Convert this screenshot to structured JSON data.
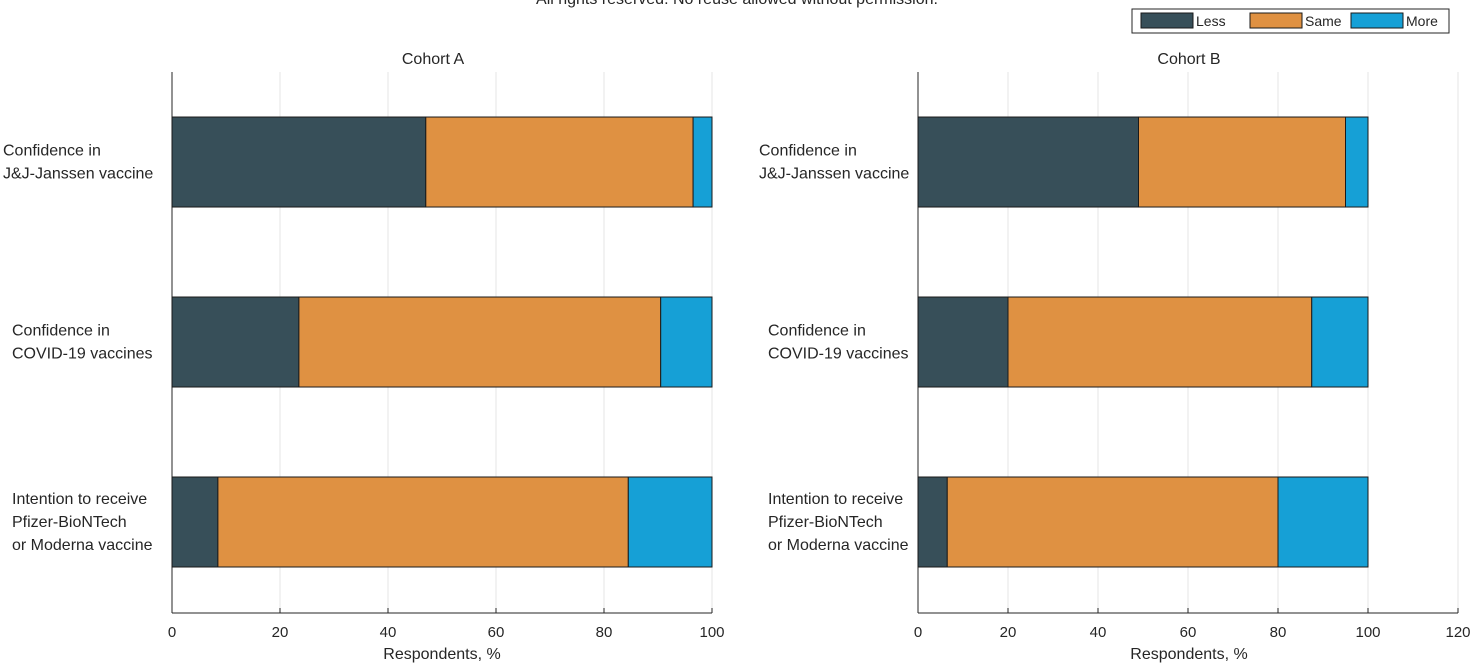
{
  "notice": "All rights reserved. No reuse allowed without permission.",
  "legend": {
    "placement": "top-right",
    "items": [
      {
        "label": "Less",
        "color": "#374f59"
      },
      {
        "label": "Same",
        "color": "#df9142"
      },
      {
        "label": "More",
        "color": "#16a0d6"
      }
    ]
  },
  "chart_data": [
    {
      "type": "bar",
      "orientation": "horizontal",
      "stacked": true,
      "title": "Cohort A",
      "xlabel": "Respondents, %",
      "ylabel": "",
      "xlim": [
        0,
        100
      ],
      "xticks": [
        0,
        20,
        40,
        60,
        80,
        100
      ],
      "grid": true,
      "categories": [
        [
          "Confidence in",
          "J&J-Janssen vaccine"
        ],
        [
          "Confidence in",
          "COVID-19 vaccines"
        ],
        [
          "Intention to receive",
          "Pfizer-BioNTech",
          "or Moderna vaccine"
        ]
      ],
      "series": [
        {
          "name": "Less",
          "color": "#374f59",
          "values": [
            47,
            23.5,
            8.5
          ]
        },
        {
          "name": "Same",
          "color": "#df9142",
          "values": [
            49.5,
            67,
            76
          ]
        },
        {
          "name": "More",
          "color": "#16a0d6",
          "values": [
            3.5,
            9.5,
            15.5
          ]
        }
      ]
    },
    {
      "type": "bar",
      "orientation": "horizontal",
      "stacked": true,
      "title": "Cohort B",
      "xlabel": "Respondents, %",
      "ylabel": "",
      "xlim": [
        0,
        120
      ],
      "xticks": [
        0,
        20,
        40,
        60,
        80,
        100,
        120
      ],
      "grid": true,
      "categories": [
        [
          "Confidence in",
          "J&J-Janssen vaccine"
        ],
        [
          "Confidence in",
          "COVID-19 vaccines"
        ],
        [
          "Intention to receive",
          "Pfizer-BioNTech",
          "or Moderna vaccine"
        ]
      ],
      "series": [
        {
          "name": "Less",
          "color": "#374f59",
          "values": [
            49,
            20,
            6.5
          ]
        },
        {
          "name": "Same",
          "color": "#df9142",
          "values": [
            46,
            67.5,
            73.5
          ]
        },
        {
          "name": "More",
          "color": "#16a0d6",
          "values": [
            5,
            12.5,
            20
          ]
        }
      ]
    }
  ]
}
